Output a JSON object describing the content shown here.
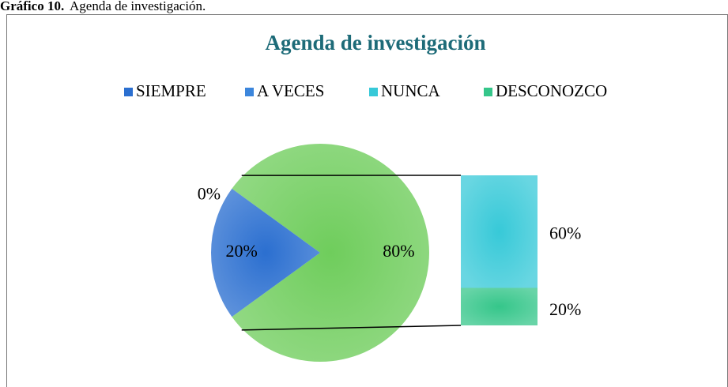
{
  "caption": {
    "label": "Gráfico 10.",
    "text": "Agenda de investigación."
  },
  "chart_data": {
    "type": "pie-of-bar",
    "title": "Agenda de investigación",
    "categories": [
      "SIEMPRE",
      "A VECES",
      "NUNCA",
      "DESCONOZCO"
    ],
    "values": [
      20,
      0,
      60,
      20
    ],
    "value_labels": [
      "20%",
      "0%",
      "60%",
      "20%"
    ],
    "colors": [
      "#2b6fd0",
      "#3c86dc",
      "#37c9d8",
      "#35c68a"
    ],
    "bar_categories": [
      2,
      3
    ],
    "pie_other": {
      "value": 80,
      "label": "80%",
      "color": "#6fcd5c"
    },
    "legend": "top"
  }
}
